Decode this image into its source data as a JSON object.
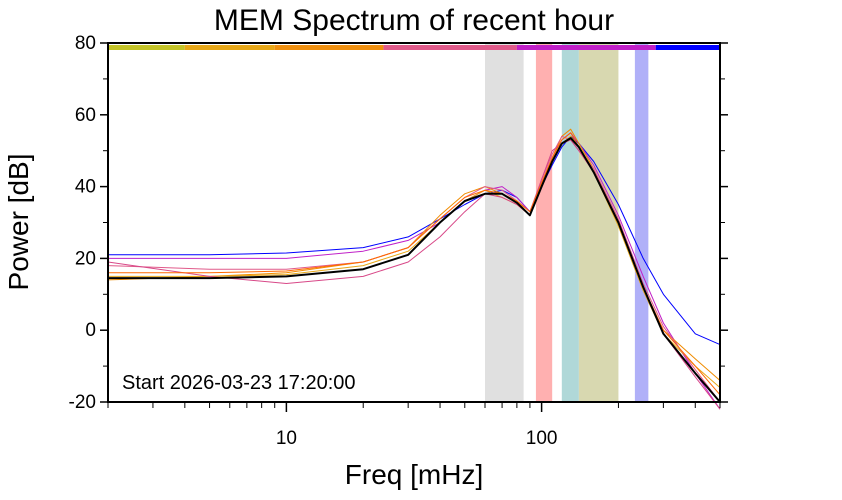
{
  "chart_data": {
    "type": "line",
    "title": "MEM Spectrum of recent hour",
    "xlabel": "Freq [mHz]",
    "ylabel": "Power [dB]",
    "xscale": "log",
    "xlim": [
      2,
      500
    ],
    "ylim": [
      -20,
      80
    ],
    "x_ticks": [
      10,
      100
    ],
    "y_ticks": [
      -20,
      0,
      20,
      40,
      60,
      80
    ],
    "annotation": "Start 2026-03-23 17:20:00",
    "grid": false,
    "bands": [
      {
        "from": 60,
        "to": 85,
        "color": "#e0e0e0"
      },
      {
        "from": 95,
        "to": 110,
        "color": "#ffb0b0"
      },
      {
        "from": 120,
        "to": 140,
        "color": "#b0d8d8"
      },
      {
        "from": 140,
        "to": 200,
        "color": "#d8d8b0"
      },
      {
        "from": 232,
        "to": 262,
        "color": "#b0b0f8"
      }
    ],
    "top_bar": [
      {
        "from": 2,
        "to": 4,
        "color": "#c4c428"
      },
      {
        "from": 4,
        "to": 9,
        "color": "#e8a818"
      },
      {
        "from": 9,
        "to": 24,
        "color": "#f09010"
      },
      {
        "from": 24,
        "to": 80,
        "color": "#e05a8a"
      },
      {
        "from": 80,
        "to": 280,
        "color": "#c020c8"
      },
      {
        "from": 280,
        "to": 500,
        "color": "#0000ff"
      }
    ],
    "x": [
      2,
      5,
      10,
      20,
      30,
      40,
      50,
      60,
      70,
      80,
      90,
      100,
      110,
      120,
      130,
      140,
      160,
      200,
      250,
      300,
      400,
      500
    ],
    "series": [
      {
        "color": "#0000ff",
        "width": 1,
        "values": [
          21,
          21,
          21.5,
          23,
          26,
          31,
          35,
          38,
          39,
          37,
          33,
          40,
          46,
          51,
          54,
          52,
          47,
          35,
          20,
          10,
          -1,
          -4
        ]
      },
      {
        "color": "#c020c8",
        "width": 1,
        "values": [
          20,
          20,
          20,
          22,
          25,
          30,
          36,
          39,
          40,
          37,
          33,
          41,
          48,
          53,
          55,
          52,
          46,
          32,
          15,
          2,
          -12,
          -22
        ]
      },
      {
        "color": "#f08c00",
        "width": 1,
        "values": [
          14,
          15,
          16,
          19,
          23,
          32,
          38,
          40,
          38,
          36,
          32,
          41,
          48,
          54,
          56,
          52,
          45,
          30,
          12,
          0,
          -8,
          -14
        ]
      },
      {
        "color": "#e8a818",
        "width": 1,
        "values": [
          15,
          15,
          15.5,
          18,
          22,
          30,
          36,
          39,
          37,
          35,
          32,
          40,
          47,
          52,
          54,
          51,
          44,
          29,
          11,
          -1,
          -10,
          -16
        ]
      },
      {
        "color": "#e05a8a",
        "width": 1,
        "values": [
          18,
          17,
          17,
          19,
          23,
          31,
          37,
          40,
          39,
          36,
          33,
          42,
          49,
          54,
          53,
          50,
          45,
          31,
          13,
          1,
          -11,
          -20
        ]
      },
      {
        "color": "#d84888",
        "width": 1,
        "values": [
          19,
          15,
          13,
          15,
          19,
          26,
          33,
          38,
          37,
          35,
          32,
          42,
          50,
          52,
          53,
          50,
          44,
          30,
          12,
          -1,
          -13,
          -22
        ]
      },
      {
        "color": "#ff6a00",
        "width": 1,
        "values": [
          16,
          16,
          16.5,
          19,
          23,
          31,
          37,
          39,
          38,
          36,
          33,
          41,
          48,
          53,
          55,
          51,
          44,
          30,
          12,
          0,
          -10,
          -18
        ]
      },
      {
        "color": "#000000",
        "width": 2,
        "values": [
          14.5,
          14.5,
          15,
          17,
          21,
          30,
          36,
          38,
          38,
          35.5,
          32,
          40,
          47,
          52,
          53.5,
          51,
          44,
          30,
          12,
          -1,
          -12,
          -20
        ]
      }
    ]
  }
}
